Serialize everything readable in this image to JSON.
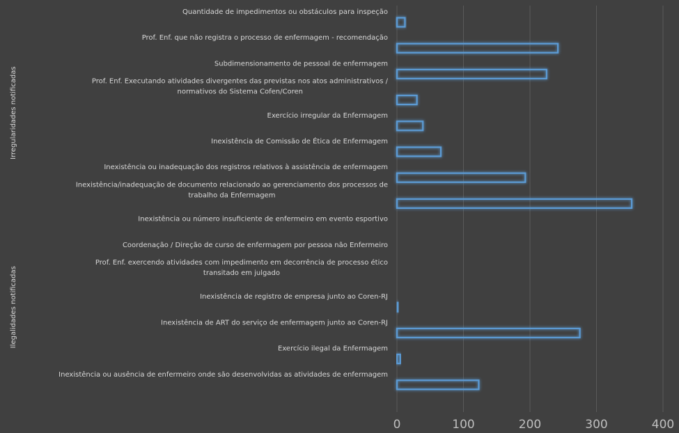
{
  "chart_data": {
    "type": "bar",
    "orientation": "horizontal",
    "title": "",
    "xlabel": "",
    "ylabel": "",
    "xlim": [
      0,
      400
    ],
    "xticks": [
      0,
      100,
      200,
      300,
      400
    ],
    "grid": true,
    "legend": "none",
    "bar_color": "#5b9bd5",
    "background": "#404040",
    "groups": [
      {
        "name": "Irregularidades notificadas",
        "categories": [
          {
            "label": [
              "Quantidade de impedimentos ou obstáculos para inspeção"
            ],
            "value": 12
          },
          {
            "label": [
              "Prof. Enf. que não registra o processo de enfermagem - recomendação"
            ],
            "value": 242
          },
          {
            "label": [
              "Subdimensionamento de pessoal de enfermagem"
            ],
            "value": 225
          },
          {
            "label": [
              "Prof. Enf. Executando atividades divergentes das previstas nos atos administrativos /",
              "normativos do Sistema Cofen/Coren"
            ],
            "value": 30
          },
          {
            "label": [
              "Exercício irregular da Enfermagem"
            ],
            "value": 39
          },
          {
            "label": [
              "Inexistência de Comissão de Ética de Enfermagem"
            ],
            "value": 66
          },
          {
            "label": [
              "Inexistência ou inadequação dos registros relativos à assistência de enfermagem"
            ],
            "value": 193
          },
          {
            "label": [
              "Inexistência/inadequação de documento relacionado ao gerenciamento dos processos de",
              "trabalho da Enfermagem"
            ],
            "value": 353
          }
        ]
      },
      {
        "name": "Ilegalidades notificadas",
        "categories": [
          {
            "label": [
              "Inexistência ou número insuficiente de enfermeiro em evento esportivo"
            ],
            "value": 0
          },
          {
            "label": [
              "Coordenação / Direção de curso de enfermagem por pessoa não Enfermeiro"
            ],
            "value": 0
          },
          {
            "label": [
              "Prof. Enf. exercendo atividades com impedimento em decorrência de processo ético",
              "transitado em julgado"
            ],
            "value": 0
          },
          {
            "label": [
              "Inexistência de registro de empresa junto ao Coren-RJ"
            ],
            "value": 2
          },
          {
            "label": [
              "Inexistência de ART do serviço de enfermagem junto ao Coren-RJ"
            ],
            "value": 275
          },
          {
            "label": [
              "Exercício ilegal da Enfermagem"
            ],
            "value": 5
          },
          {
            "label": [
              "Inexistência ou ausência de enfermeiro onde são desenvolvidas as atividades de enfermagem"
            ],
            "value": 123
          }
        ]
      }
    ]
  }
}
